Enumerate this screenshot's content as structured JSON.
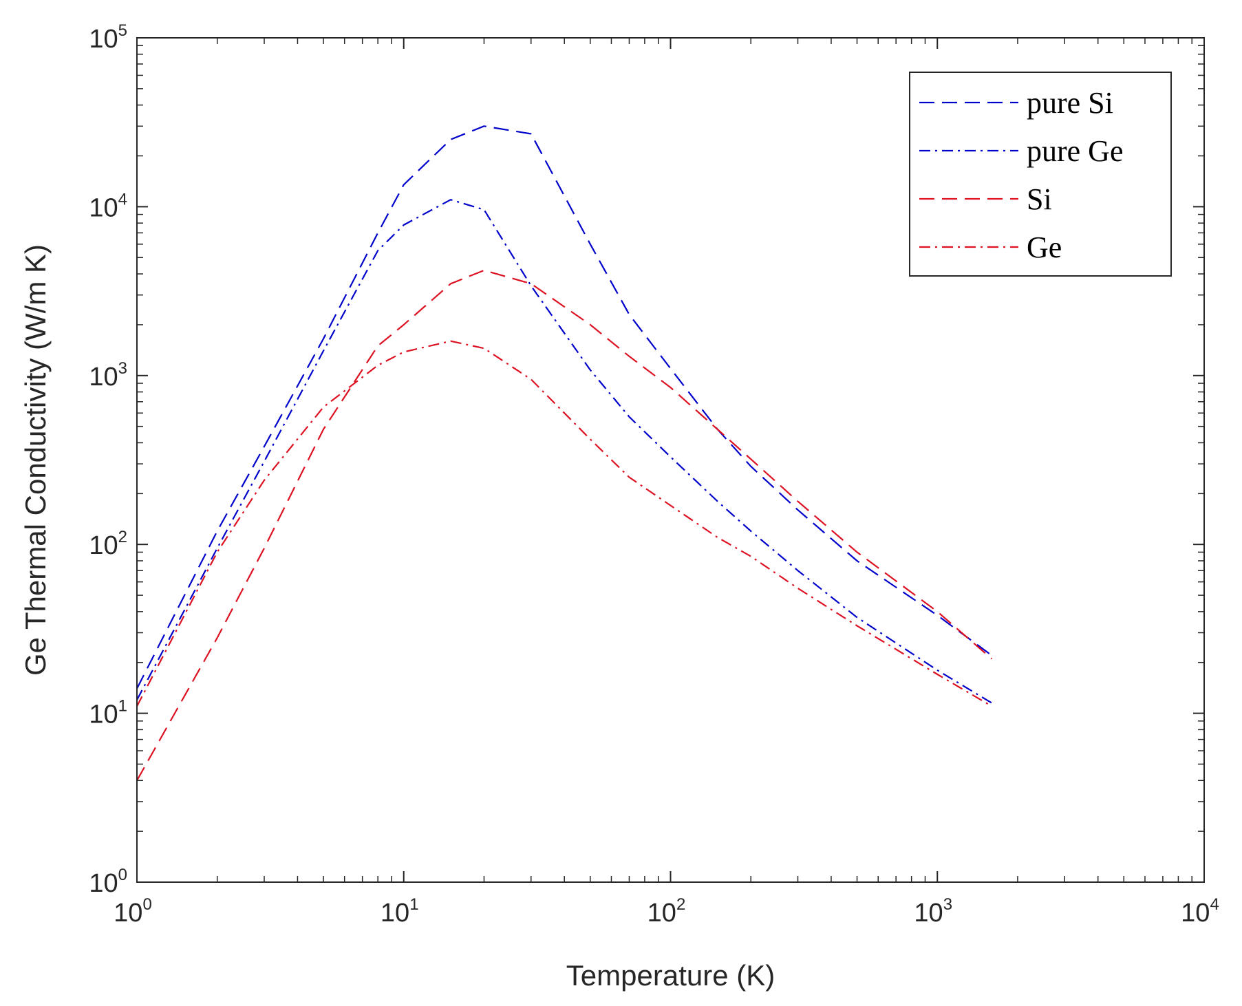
{
  "chart_data": {
    "type": "line",
    "title": "",
    "xlabel": "Temperature (K)",
    "ylabel": "Ge Thermal Conductivity (W/m K)",
    "xscale": "log",
    "yscale": "log",
    "xlim": [
      1,
      10000
    ],
    "ylim": [
      1,
      100000
    ],
    "grid": false,
    "legend_position": "top-right",
    "x_ticks": [
      {
        "base": "10",
        "exp": "0",
        "value": 1
      },
      {
        "base": "10",
        "exp": "1",
        "value": 10
      },
      {
        "base": "10",
        "exp": "2",
        "value": 100
      },
      {
        "base": "10",
        "exp": "3",
        "value": 1000
      },
      {
        "base": "10",
        "exp": "4",
        "value": 10000
      }
    ],
    "y_ticks": [
      {
        "base": "10",
        "exp": "0",
        "value": 1
      },
      {
        "base": "10",
        "exp": "1",
        "value": 10
      },
      {
        "base": "10",
        "exp": "2",
        "value": 100
      },
      {
        "base": "10",
        "exp": "3",
        "value": 1000
      },
      {
        "base": "10",
        "exp": "4",
        "value": 10000
      },
      {
        "base": "10",
        "exp": "5",
        "value": 100000
      }
    ],
    "series": [
      {
        "name": "pure Si",
        "color": "#0000cc",
        "style": "dashed",
        "x": [
          1,
          2,
          3,
          5,
          8,
          10,
          15,
          20,
          30,
          50,
          70,
          100,
          150,
          200,
          300,
          500,
          1000,
          1600
        ],
        "y": [
          14,
          120,
          380,
          1650,
          7000,
          13500,
          25000,
          30000,
          27000,
          6000,
          2300,
          1100,
          480,
          290,
          160,
          80,
          38,
          22
        ]
      },
      {
        "name": "pure Ge",
        "color": "#0000cc",
        "style": "dashdot",
        "x": [
          1,
          2,
          3,
          5,
          8,
          10,
          15,
          20,
          30,
          50,
          70,
          100,
          150,
          200,
          300,
          500,
          1000,
          1600
        ],
        "y": [
          12,
          95,
          310,
          1400,
          5500,
          7800,
          11000,
          9600,
          3400,
          1080,
          570,
          330,
          180,
          120,
          70,
          37,
          18,
          11.5
        ]
      },
      {
        "name": "Si",
        "color": "#dd1122",
        "style": "dashed",
        "x": [
          1,
          2,
          3,
          5,
          8,
          10,
          15,
          20,
          30,
          50,
          70,
          100,
          150,
          200,
          300,
          500,
          1000,
          1600
        ],
        "y": [
          4,
          28,
          95,
          480,
          1500,
          2000,
          3500,
          4200,
          3500,
          2000,
          1300,
          850,
          480,
          320,
          180,
          90,
          40,
          21
        ]
      },
      {
        "name": "Ge",
        "color": "#dd1122",
        "style": "dashdot",
        "x": [
          1,
          2,
          3,
          5,
          8,
          10,
          15,
          20,
          30,
          50,
          70,
          100,
          150,
          200,
          300,
          500,
          1000,
          1600
        ],
        "y": [
          11,
          90,
          240,
          650,
          1150,
          1380,
          1600,
          1450,
          950,
          420,
          250,
          170,
          110,
          85,
          55,
          33,
          17,
          11
        ]
      }
    ]
  }
}
